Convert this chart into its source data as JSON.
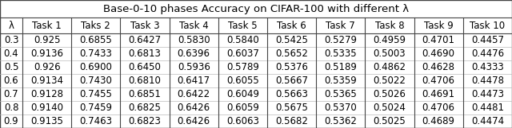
{
  "title": "Base-0-10 phases Accuracy on CIFAR-100 with different λ",
  "columns": [
    "λ",
    "Task 1",
    "Taks 2",
    "Task 3",
    "Task 4",
    "Task 5",
    "Task 6",
    "Task 7",
    "Task 8",
    "Task 9",
    "Task 10"
  ],
  "rows": [
    [
      "0.3",
      "0.925",
      "0.6855",
      "0.6427",
      "0.5830",
      "0.5840",
      "0.5425",
      "0.5279",
      "0.4959",
      "0.4701",
      "0.4457"
    ],
    [
      "0.4",
      "0.9136",
      "0.7433",
      "0.6813",
      "0.6396",
      "0.6037",
      "0.5652",
      "0.5335",
      "0.5003",
      "0.4690",
      "0.4476"
    ],
    [
      "0.5",
      "0.926",
      "0.6900",
      "0.6450",
      "0.5936",
      "0.5789",
      "0.5376",
      "0.5189",
      "0.4862",
      "0.4628",
      "0.4333"
    ],
    [
      "0.6",
      "0.9134",
      "0.7430",
      "0.6810",
      "0.6417",
      "0.6055",
      "0.5667",
      "0.5359",
      "0.5022",
      "0.4706",
      "0.4478"
    ],
    [
      "0.7",
      "0.9128",
      "0.7455",
      "0.6851",
      "0.6422",
      "0.6049",
      "0.5663",
      "0.5365",
      "0.5026",
      "0.4691",
      "0.4473"
    ],
    [
      "0.8",
      "0.9140",
      "0.7459",
      "0.6825",
      "0.6426",
      "0.6059",
      "0.5675",
      "0.5370",
      "0.5024",
      "0.4706",
      "0.4481"
    ],
    [
      "0.9",
      "0.9135",
      "0.7463",
      "0.6823",
      "0.6426",
      "0.6063",
      "0.5682",
      "0.5362",
      "0.5025",
      "0.4689",
      "0.4474"
    ]
  ],
  "bg_color": "#ffffff",
  "title_fontsize": 9.5,
  "cell_fontsize": 8.5,
  "font_family": "DejaVu Sans"
}
